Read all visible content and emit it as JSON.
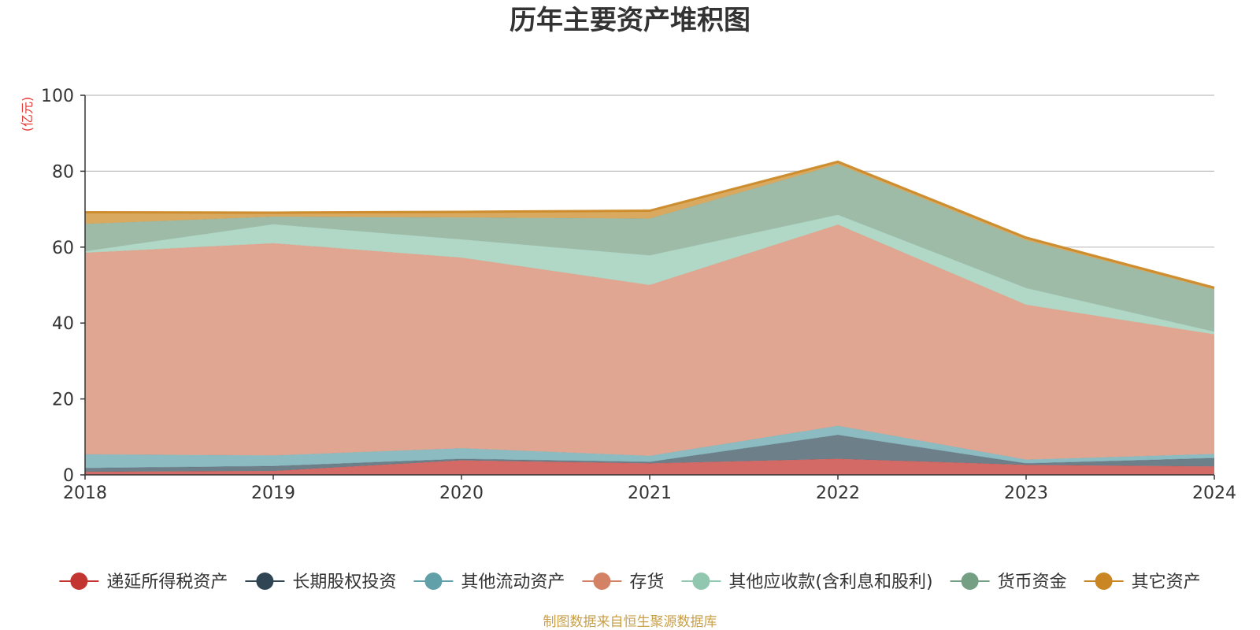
{
  "chart_data": {
    "type": "area",
    "stacked": true,
    "title": "历年主要资产堆积图",
    "unit_label": "(亿元)",
    "source": "制图数据来自恒生聚源数据库",
    "x": [
      "2018",
      "2019",
      "2020",
      "2021",
      "2022",
      "2023",
      "2024"
    ],
    "ylim": [
      0,
      100
    ],
    "yticks": [
      0,
      20,
      40,
      60,
      80,
      100
    ],
    "grid": true,
    "legend_position": "bottom",
    "series": [
      {
        "name": "递延所得税资产",
        "color": "#c23531",
        "fill": "#d36a66",
        "values": [
          0.8,
          1.0,
          3.8,
          3.0,
          4.2,
          2.6,
          2.2
        ]
      },
      {
        "name": "长期股权投资",
        "color": "#2f4554",
        "fill": "#6d7f89",
        "values": [
          1.0,
          1.3,
          0.4,
          0.4,
          6.3,
          0.4,
          2.2
        ]
      },
      {
        "name": "其他流动资产",
        "color": "#61a0a8",
        "fill": "#8cbcc2",
        "values": [
          3.6,
          2.8,
          2.8,
          1.6,
          2.4,
          1.0,
          1.1
        ]
      },
      {
        "name": "存货",
        "color": "#d48265",
        "fill": "#e0a691",
        "values": [
          53.1,
          55.9,
          50.2,
          45.0,
          53.0,
          40.8,
          31.5
        ]
      },
      {
        "name": "其他应收款(含利息和股利)",
        "color": "#91c7ae",
        "fill": "#b1d8c6",
        "values": [
          0.4,
          5.0,
          4.8,
          7.8,
          2.6,
          4.4,
          0.7
        ]
      },
      {
        "name": "货币资金",
        "color": "#749f83",
        "fill": "#9ebba8",
        "values": [
          7.2,
          2.0,
          5.8,
          9.7,
          13.3,
          12.6,
          11.1
        ]
      },
      {
        "name": "其它资产",
        "color": "#ca8622",
        "fill": "#d9a95f",
        "values": [
          3.1,
          1.1,
          1.5,
          2.1,
          0.7,
          0.7,
          0.5
        ]
      }
    ]
  }
}
